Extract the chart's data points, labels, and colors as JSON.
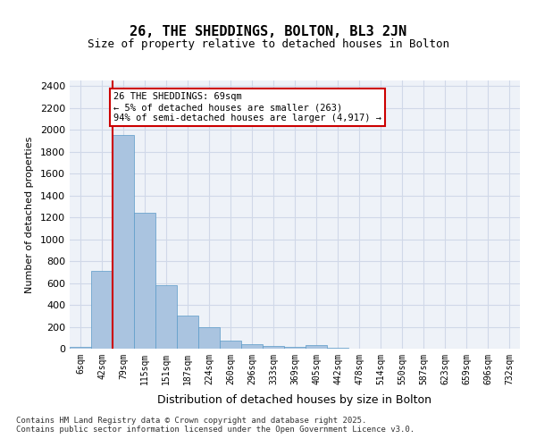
{
  "title1": "26, THE SHEDDINGS, BOLTON, BL3 2JN",
  "title2": "Size of property relative to detached houses in Bolton",
  "xlabel": "Distribution of detached houses by size in Bolton",
  "ylabel": "Number of detached properties",
  "categories": [
    "6sqm",
    "42sqm",
    "79sqm",
    "115sqm",
    "151sqm",
    "187sqm",
    "224sqm",
    "260sqm",
    "296sqm",
    "333sqm",
    "369sqm",
    "405sqm",
    "442sqm",
    "478sqm",
    "514sqm",
    "550sqm",
    "587sqm",
    "623sqm",
    "659sqm",
    "696sqm",
    "732sqm"
  ],
  "values": [
    15,
    710,
    1950,
    1240,
    580,
    305,
    200,
    75,
    40,
    28,
    15,
    30,
    8,
    3,
    2,
    2,
    1,
    0,
    0,
    0,
    0
  ],
  "bar_color": "#aac4e0",
  "bar_edge_color": "#5a9ac8",
  "grid_color": "#d0d8e8",
  "bg_color": "#eef2f8",
  "vline_x": 1.5,
  "vline_color": "#cc0000",
  "annotation_text": "26 THE SHEDDINGS: 69sqm\n← 5% of detached houses are smaller (263)\n94% of semi-detached houses are larger (4,917) →",
  "annotation_box_color": "#cc0000",
  "footer": "Contains HM Land Registry data © Crown copyright and database right 2025.\nContains public sector information licensed under the Open Government Licence v3.0.",
  "ylim": [
    0,
    2450
  ],
  "yticks": [
    0,
    200,
    400,
    600,
    800,
    1000,
    1200,
    1400,
    1600,
    1800,
    2000,
    2200,
    2400
  ]
}
